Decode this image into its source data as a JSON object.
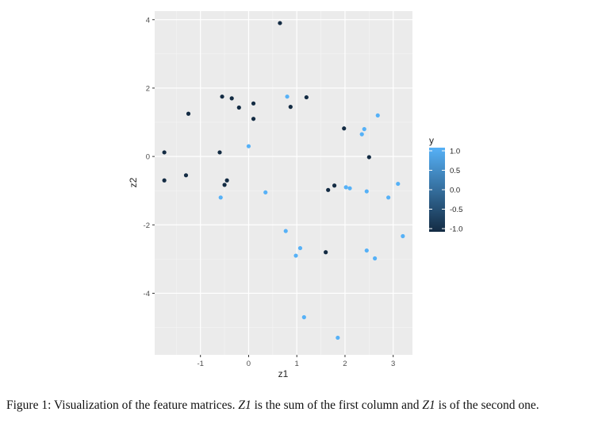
{
  "chart_data": {
    "type": "scatter",
    "xlabel": "z1",
    "ylabel": "z2",
    "xlim": [
      -1.95,
      3.4
    ],
    "ylim": [
      -5.8,
      4.25
    ],
    "x_ticks": [
      -1,
      0,
      1,
      2,
      3
    ],
    "y_ticks": [
      4,
      2,
      0,
      -2,
      -4
    ],
    "x_tick_labels": [
      "-1",
      "0",
      "1",
      "2",
      "3"
    ],
    "y_tick_labels": [
      "4",
      "2",
      "0",
      "-2",
      "-4"
    ],
    "grid": true,
    "legend": {
      "title": "y",
      "placement": "right",
      "type": "colorbar",
      "range": [
        -1.0,
        1.0
      ],
      "ticks": [
        1.0,
        0.5,
        0.0,
        -0.5,
        -1.0
      ],
      "tick_labels": [
        "1.0",
        "0.5",
        "0.0",
        "-0.5",
        "-1.0"
      ],
      "low_color": "#132B43",
      "high_color": "#56B1F7"
    },
    "points": [
      {
        "x": 0.65,
        "y": 3.9,
        "y_value": -1
      },
      {
        "x": -0.55,
        "y": 1.75,
        "y_value": -1
      },
      {
        "x": -0.35,
        "y": 1.7,
        "y_value": -1
      },
      {
        "x": 0.1,
        "y": 1.55,
        "y_value": -1
      },
      {
        "x": -0.2,
        "y": 1.43,
        "y_value": -1
      },
      {
        "x": 1.2,
        "y": 1.73,
        "y_value": -1
      },
      {
        "x": 0.87,
        "y": 1.45,
        "y_value": -1
      },
      {
        "x": 0.1,
        "y": 1.1,
        "y_value": -1
      },
      {
        "x": -1.25,
        "y": 1.25,
        "y_value": -1
      },
      {
        "x": -1.75,
        "y": 0.12,
        "y_value": -1
      },
      {
        "x": -0.6,
        "y": 0.12,
        "y_value": -1
      },
      {
        "x": -1.3,
        "y": -0.55,
        "y_value": -1
      },
      {
        "x": -1.75,
        "y": -0.7,
        "y_value": -1
      },
      {
        "x": -0.45,
        "y": -0.7,
        "y_value": -1
      },
      {
        "x": -0.5,
        "y": -0.83,
        "y_value": -1
      },
      {
        "x": 1.98,
        "y": 0.82,
        "y_value": -1
      },
      {
        "x": 2.5,
        "y": -0.02,
        "y_value": -1
      },
      {
        "x": 1.65,
        "y": -0.98,
        "y_value": -1
      },
      {
        "x": 1.78,
        "y": -0.85,
        "y_value": -1
      },
      {
        "x": 1.6,
        "y": -2.8,
        "y_value": -1
      },
      {
        "x": 0.8,
        "y": 1.75,
        "y_value": 1
      },
      {
        "x": 0.0,
        "y": 0.3,
        "y_value": 1
      },
      {
        "x": 2.68,
        "y": 1.2,
        "y_value": 1
      },
      {
        "x": 2.4,
        "y": 0.8,
        "y_value": 1
      },
      {
        "x": 2.35,
        "y": 0.65,
        "y_value": 1
      },
      {
        "x": 0.35,
        "y": -1.05,
        "y_value": 1
      },
      {
        "x": -0.58,
        "y": -1.2,
        "y_value": 1
      },
      {
        "x": 2.02,
        "y": -0.9,
        "y_value": 1
      },
      {
        "x": 2.1,
        "y": -0.93,
        "y_value": 1
      },
      {
        "x": 2.45,
        "y": -1.02,
        "y_value": 1
      },
      {
        "x": 3.1,
        "y": -0.8,
        "y_value": 1
      },
      {
        "x": 2.9,
        "y": -1.2,
        "y_value": 1
      },
      {
        "x": 3.2,
        "y": -2.33,
        "y_value": 1
      },
      {
        "x": 0.77,
        "y": -2.18,
        "y_value": 1
      },
      {
        "x": 1.07,
        "y": -2.68,
        "y_value": 1
      },
      {
        "x": 0.98,
        "y": -2.9,
        "y_value": 1
      },
      {
        "x": 2.45,
        "y": -2.75,
        "y_value": 1
      },
      {
        "x": 2.62,
        "y": -2.98,
        "y_value": 1
      },
      {
        "x": 1.15,
        "y": -4.7,
        "y_value": 1
      },
      {
        "x": 1.85,
        "y": -5.3,
        "y_value": 1
      }
    ]
  },
  "caption": {
    "prefix": "Figure 1: Visualization of the feature matrices. ",
    "var1": "Z1",
    "middle": " is the sum of the first column and ",
    "var2": "Z1",
    "suffix": " is of the second one."
  }
}
